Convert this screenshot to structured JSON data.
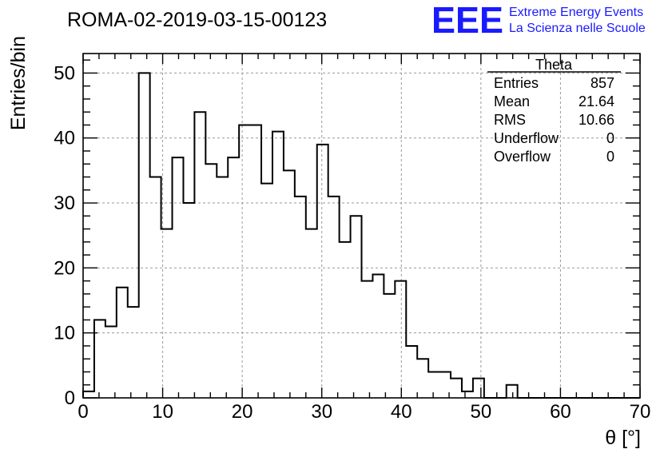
{
  "header": {
    "run_label": "ROMA-02-2019-03-15-00123",
    "logo_text": "EEE",
    "brand_line1": "Extreme Energy Events",
    "brand_line2": "La Scienza nelle Scuole",
    "brand_color": "#1a1aff"
  },
  "stats_box": {
    "title": "Theta",
    "rows": [
      {
        "label": "Entries",
        "value": "857"
      },
      {
        "label": "Mean",
        "value": "21.64"
      },
      {
        "label": "RMS",
        "value": "10.66"
      },
      {
        "label": "Underflow",
        "value": "0"
      },
      {
        "label": "Overflow",
        "value": "0"
      }
    ]
  },
  "chart_data": {
    "type": "bar",
    "subtype": "step-histogram",
    "title": "",
    "xlabel": "θ [°]",
    "ylabel": "Entries/bin",
    "xlim": [
      0,
      70
    ],
    "ylim": [
      0,
      53
    ],
    "bin_width": 1.4,
    "x_ticks": [
      0,
      10,
      20,
      30,
      40,
      50,
      60,
      70
    ],
    "y_ticks": [
      0,
      10,
      20,
      30,
      40,
      50
    ],
    "grid": true,
    "values": [
      1,
      12,
      11,
      17,
      14,
      50,
      34,
      26,
      37,
      30,
      44,
      36,
      34,
      37,
      42,
      42,
      33,
      41,
      35,
      31,
      26,
      39,
      31,
      24,
      28,
      18,
      19,
      16,
      18,
      8,
      6,
      4,
      4,
      3,
      1,
      3,
      0,
      0,
      2,
      0,
      0,
      0,
      0,
      0,
      0,
      0,
      0,
      0,
      0,
      0
    ]
  }
}
